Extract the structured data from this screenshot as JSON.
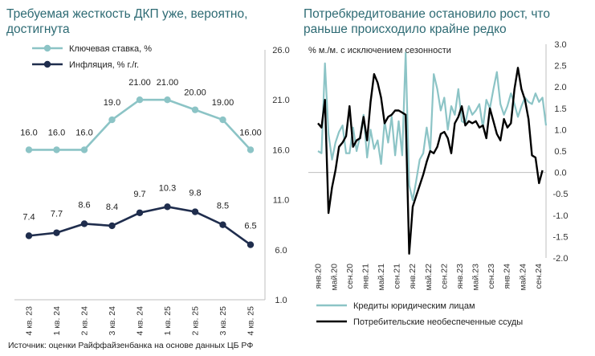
{
  "left_panel": {
    "title": "Требуемая жесткость ДКП уже, вероятно, достигнута"
  },
  "right_panel": {
    "title": "Потребкредитование остановило рост, что раньше происходило крайне редко"
  },
  "source_note": "Источник: оценки Райффайзенбанка на основе данных ЦБ РФ",
  "colors": {
    "teal": "#8cc4c6",
    "navy": "#1f2d4d",
    "black": "#000000",
    "title": "#2e6b74"
  },
  "chart_data": [
    {
      "type": "line",
      "categories": [
        "4 кв. 23",
        "1 кв. 24",
        "2 кв. 24",
        "3 кв. 24",
        "4 кв. 24",
        "1 кв. 25",
        "2 кв. 25",
        "3 кв. 25",
        "4 кв. 25"
      ],
      "series": [
        {
          "name": "Ключевая ставка, %",
          "values": [
            16.0,
            16.0,
            16.0,
            19.0,
            21.0,
            21.0,
            20.0,
            19.0,
            16.0
          ],
          "labels": [
            "16.0",
            "16.0",
            "16.0",
            "19.0",
            "21.00",
            "21.00",
            "20.00",
            "19.00",
            "16.00"
          ]
        },
        {
          "name": "Инфляция, % г./г.",
          "values": [
            7.4,
            7.7,
            8.6,
            8.4,
            9.7,
            10.3,
            9.8,
            8.5,
            6.5
          ],
          "labels": [
            "7.4",
            "7.7",
            "8.6",
            "8.4",
            "9.7",
            "10.3",
            "9.8",
            "8.5",
            "6.5"
          ]
        }
      ],
      "ylim": [
        1.0,
        26.0
      ],
      "yticks": [
        "1.0",
        "6.0",
        "11.0",
        "16.0",
        "21.0",
        "26.0"
      ],
      "y_axis_side": "right",
      "legend_position": "top-left"
    },
    {
      "type": "line",
      "ylabel": "% м./м. с исключением сезонности",
      "xticks": [
        "янв.20",
        "май.20",
        "сен.20",
        "янв.21",
        "май.21",
        "сен.21",
        "янв.22",
        "май.22",
        "сен.22",
        "янв.23",
        "май.23",
        "сен.23",
        "янв.24",
        "май.24",
        "сен.24"
      ],
      "ylim": [
        -2.0,
        3.0
      ],
      "yticks": [
        "-2.0",
        "-1.5",
        "-1.0",
        "-0.5",
        "0.0",
        "0.5",
        "1.0",
        "1.5",
        "2.0",
        "2.5",
        "3.0"
      ],
      "y_axis_side": "right",
      "series": [
        {
          "name": "Кредиты юридическим лицам",
          "values": [
            0.5,
            0.45,
            2.55,
            0.9,
            0.3,
            0.7,
            0.95,
            1.1,
            0.45,
            0.45,
            1.05,
            0.5,
            0.85,
            1.35,
            0.35,
            1.0,
            0.55,
            0.75,
            0.2,
            1.2,
            0.7,
            1.3,
            0.4,
            1.2,
            0.4,
            2.8,
            -0.3,
            -0.65,
            -0.2,
            0.3,
            0.45,
            1.05,
            0.5,
            2.3,
            1.95,
            1.45,
            1.75,
            1.0,
            1.55,
            1.35,
            1.95,
            1.2,
            1.15,
            1.55,
            1.35,
            1.45,
            1.6,
            1.05,
            1.7,
            1.5,
            1.95,
            2.35,
            1.6,
            1.35,
            1.55,
            1.85,
            1.6,
            1.3,
            1.55,
            1.75,
            1.65,
            1.6,
            1.85,
            1.65,
            1.75,
            1.1
          ]
        },
        {
          "name": "Потребительские необеспеченные ссуды",
          "values": [
            1.15,
            1.05,
            1.7,
            -0.95,
            -0.35,
            0.05,
            0.6,
            0.7,
            0.85,
            1.55,
            0.6,
            0.75,
            0.8,
            1.3,
            0.75,
            1.65,
            2.3,
            2.1,
            1.75,
            1.15,
            1.3,
            1.35,
            1.45,
            1.45,
            1.4,
            1.35,
            -1.9,
            -0.8,
            -0.55,
            -0.3,
            -0.05,
            0.25,
            0.5,
            0.45,
            0.6,
            0.9,
            0.95,
            0.8,
            0.45,
            1.15,
            1.3,
            1.55,
            1.1,
            1.2,
            1.15,
            1.2,
            1.05,
            1.1,
            0.8,
            1.5,
            1.2,
            0.9,
            0.75,
            1.25,
            1.05,
            1.15,
            1.95,
            2.45,
            1.95,
            1.7,
            1.25,
            0.4,
            0.35,
            -0.25,
            0.05
          ]
        }
      ],
      "legend_position": "bottom"
    }
  ]
}
